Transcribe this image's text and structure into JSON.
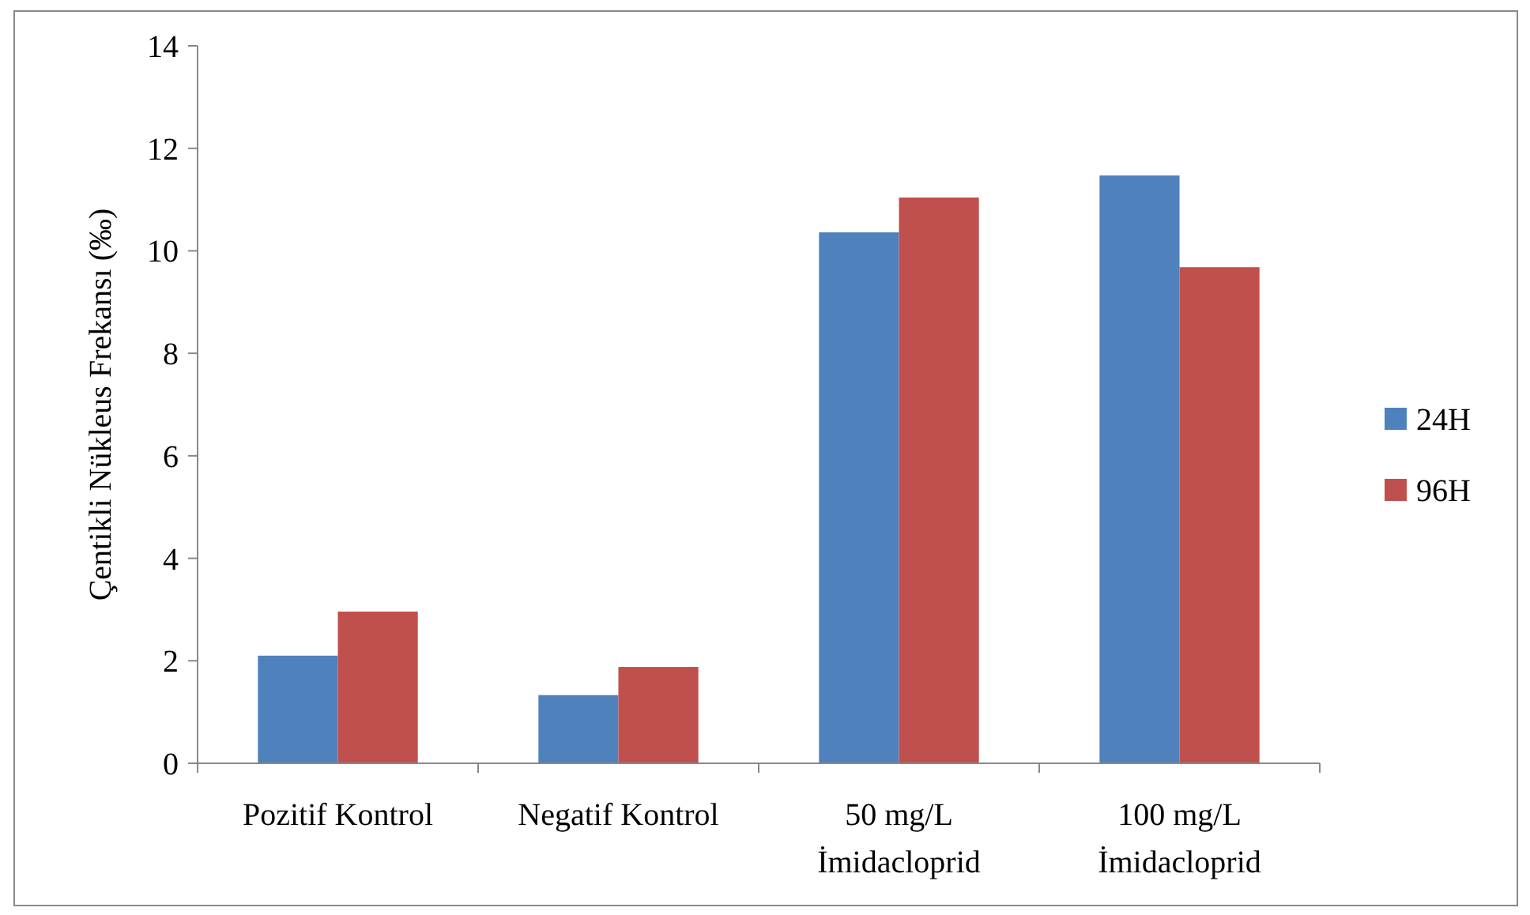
{
  "chart_data": {
    "type": "bar",
    "ylabel": "Çentikli Nükleus Frekansı (‰)",
    "categories": [
      "Pozitif Kontrol",
      "Negatif Kontrol",
      "50 mg/L\nİmidacloprid",
      "100 mg/L\nİmidacloprid"
    ],
    "series": [
      {
        "name": "24H",
        "color": "#4f81bd",
        "values": [
          2.1,
          1.33,
          10.36,
          11.47
        ]
      },
      {
        "name": "96H",
        "color": "#c0504d",
        "values": [
          2.96,
          1.88,
          11.04,
          9.68
        ]
      }
    ],
    "ylim": [
      0,
      14
    ],
    "yticks": [
      0,
      2,
      4,
      6,
      8,
      10,
      12,
      14
    ],
    "grid": false,
    "legend": "right"
  }
}
